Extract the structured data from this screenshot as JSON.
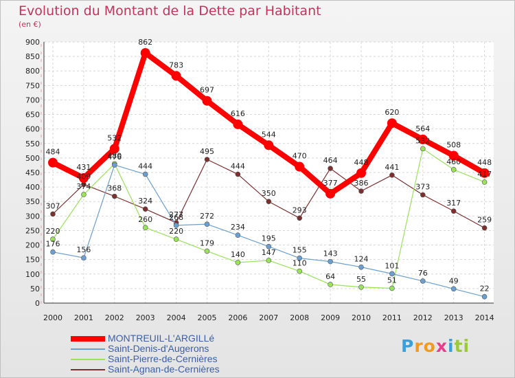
{
  "chart_data": {
    "type": "line",
    "title": "Evolution du Montant de la Dette par Habitant",
    "subtitle": "(en €)",
    "categories": [
      "2000",
      "2001",
      "2002",
      "2003",
      "2004",
      "2005",
      "2006",
      "2007",
      "2008",
      "2009",
      "2010",
      "2011",
      "2012",
      "2013",
      "2014"
    ],
    "ylim": [
      0,
      900
    ],
    "yticks": [
      0,
      50,
      100,
      150,
      200,
      250,
      300,
      350,
      400,
      450,
      500,
      550,
      600,
      650,
      700,
      750,
      800,
      850,
      900
    ],
    "grid": true,
    "legend_position": "bottom-left",
    "series": [
      {
        "name": "MONTREUIL-L'ARGILLé",
        "color": "#ff0000",
        "values": [
          484,
          431,
          532,
          862,
          783,
          697,
          616,
          544,
          470,
          377,
          448,
          620,
          564,
          508,
          448
        ],
        "labels": [
          "484",
          "431",
          "532",
          "862",
          "783",
          "697",
          "616",
          "544",
          "470",
          "377",
          "448",
          "620",
          "564",
          "508",
          "448"
        ]
      },
      {
        "name": "Saint-Denis-d'Augerons",
        "color": "#6b9fd0",
        "values": [
          176,
          156,
          476,
          444,
          268,
          272,
          234,
          195,
          155,
          143,
          124,
          101,
          76,
          49,
          22
        ],
        "labels": [
          "176",
          "156",
          "476",
          "444",
          "268",
          "272",
          "234",
          "195",
          "155",
          "143",
          "124",
          "101",
          "76",
          "49",
          "22"
        ]
      },
      {
        "name": "Saint-Pierre-de-Cernières",
        "color": "#99e25a",
        "values": [
          220,
          374,
          480,
          260,
          220,
          179,
          140,
          147,
          110,
          64,
          55,
          51,
          532,
          460,
          417
        ],
        "labels": [
          "220",
          "374",
          "480",
          "260",
          "220",
          "179",
          "140",
          "147",
          "110",
          "64",
          "55",
          "51",
          "532",
          "460",
          "417"
        ]
      },
      {
        "name": "Saint-Agnan-de-Cernières",
        "color": "#7d2e2e",
        "values": [
          307,
          409,
          368,
          324,
          277,
          495,
          444,
          350,
          293,
          464,
          386,
          441,
          373,
          317,
          259
        ],
        "labels": [
          "307",
          "409",
          "368",
          "324",
          "277",
          "495",
          "444",
          "350",
          "293",
          "464",
          "386",
          "441",
          "373",
          "317",
          "259"
        ]
      }
    ]
  },
  "logo": {
    "letters": [
      "P",
      "r",
      "o",
      "x",
      "i",
      "t",
      "i"
    ],
    "colors": [
      "#3aa0dc",
      "#f29a1f",
      "#f29a1f",
      "#e83e8c",
      "#3aa0dc",
      "#9ac93a",
      "#9ac93a"
    ]
  }
}
